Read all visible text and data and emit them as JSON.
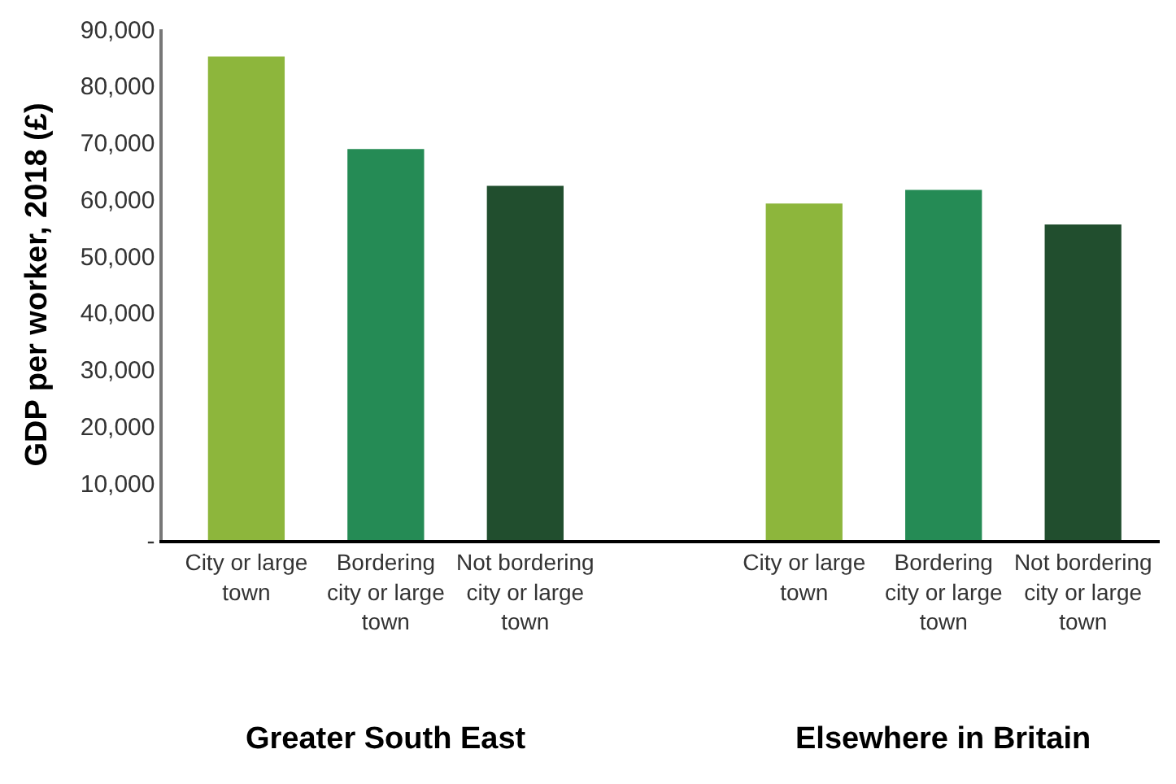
{
  "chart_data": {
    "type": "bar",
    "ylabel": "GDP per worker, 2018 (£)",
    "categories": [
      "City or large town",
      "Bordering city or large town",
      "Not bordering city or large town",
      null,
      "City or large town",
      "Bordering city or large town",
      "Not bordering city or large town"
    ],
    "values": [
      85200,
      68900,
      62400,
      null,
      59300,
      61700,
      55600
    ],
    "colors": [
      "#8db63c",
      "#258b55",
      "#214e2e",
      null,
      "#8db63c",
      "#258b55",
      "#214e2e"
    ],
    "ylim": [
      0,
      90000
    ],
    "yticks": [
      {
        "value": 0,
        "label": "-"
      },
      {
        "value": 10000,
        "label": "10,000"
      },
      {
        "value": 20000,
        "label": "20,000"
      },
      {
        "value": 30000,
        "label": "30,000"
      },
      {
        "value": 40000,
        "label": "40,000"
      },
      {
        "value": 50000,
        "label": "50,000"
      },
      {
        "value": 60000,
        "label": "60,000"
      },
      {
        "value": 70000,
        "label": "70,000"
      },
      {
        "value": 80000,
        "label": "80,000"
      },
      {
        "value": 90000,
        "label": "90,000"
      }
    ],
    "legend": false,
    "annotations": [
      "Greater South East",
      "Elsewhere in Britain"
    ]
  }
}
